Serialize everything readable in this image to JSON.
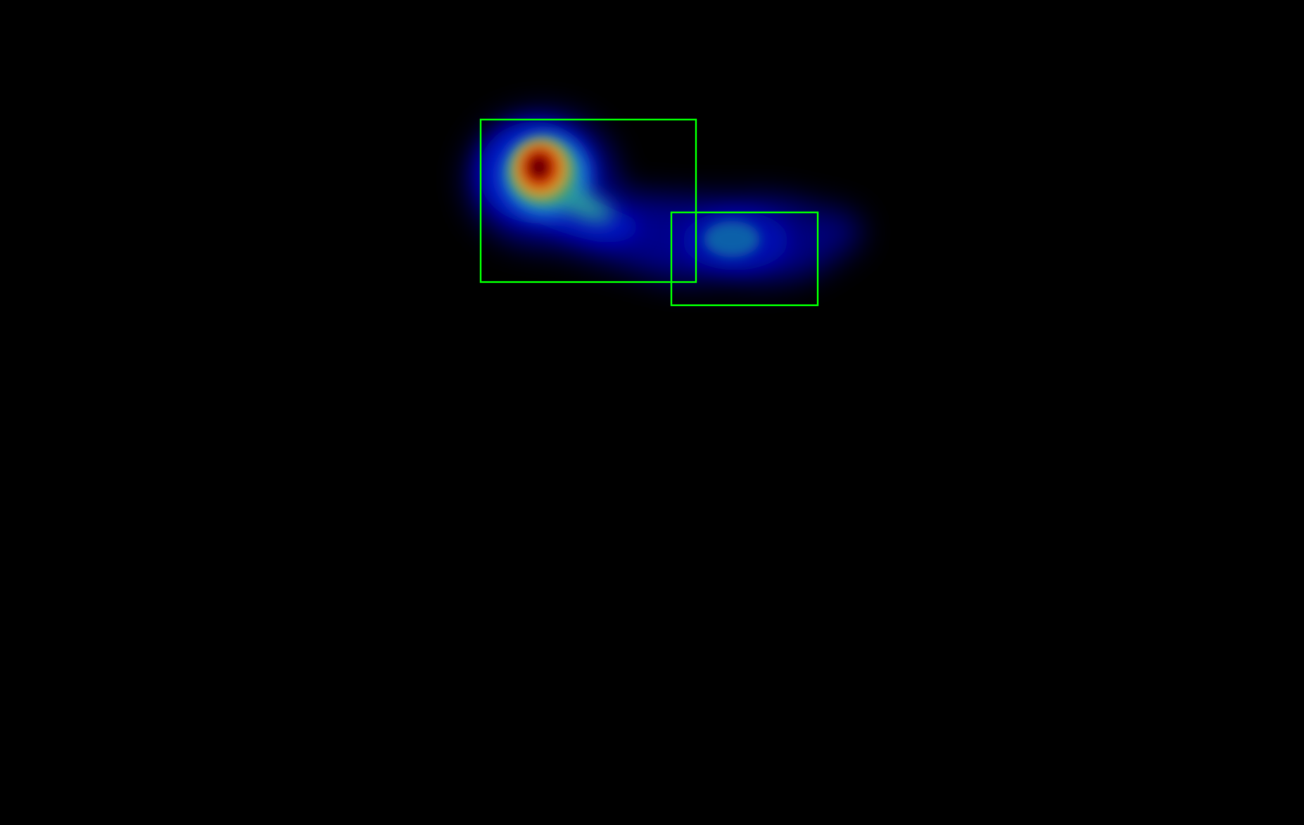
{
  "background_color": "#000000",
  "box_color": "#00FF00",
  "heatmap_colormap": "jet",
  "heatmap_blobs": [
    {
      "name": "primary-hotspot",
      "peak_intensity": 1.0
    },
    {
      "name": "hotspot-tail",
      "peak_intensity": 0.45
    },
    {
      "name": "secondary-hotspot",
      "peak_intensity": 0.35
    },
    {
      "name": "secondary-extension",
      "peak_intensity": 0.18
    }
  ],
  "detection_boxes": [
    {
      "name": "detection-box-1"
    },
    {
      "name": "detection-box-2"
    }
  ]
}
